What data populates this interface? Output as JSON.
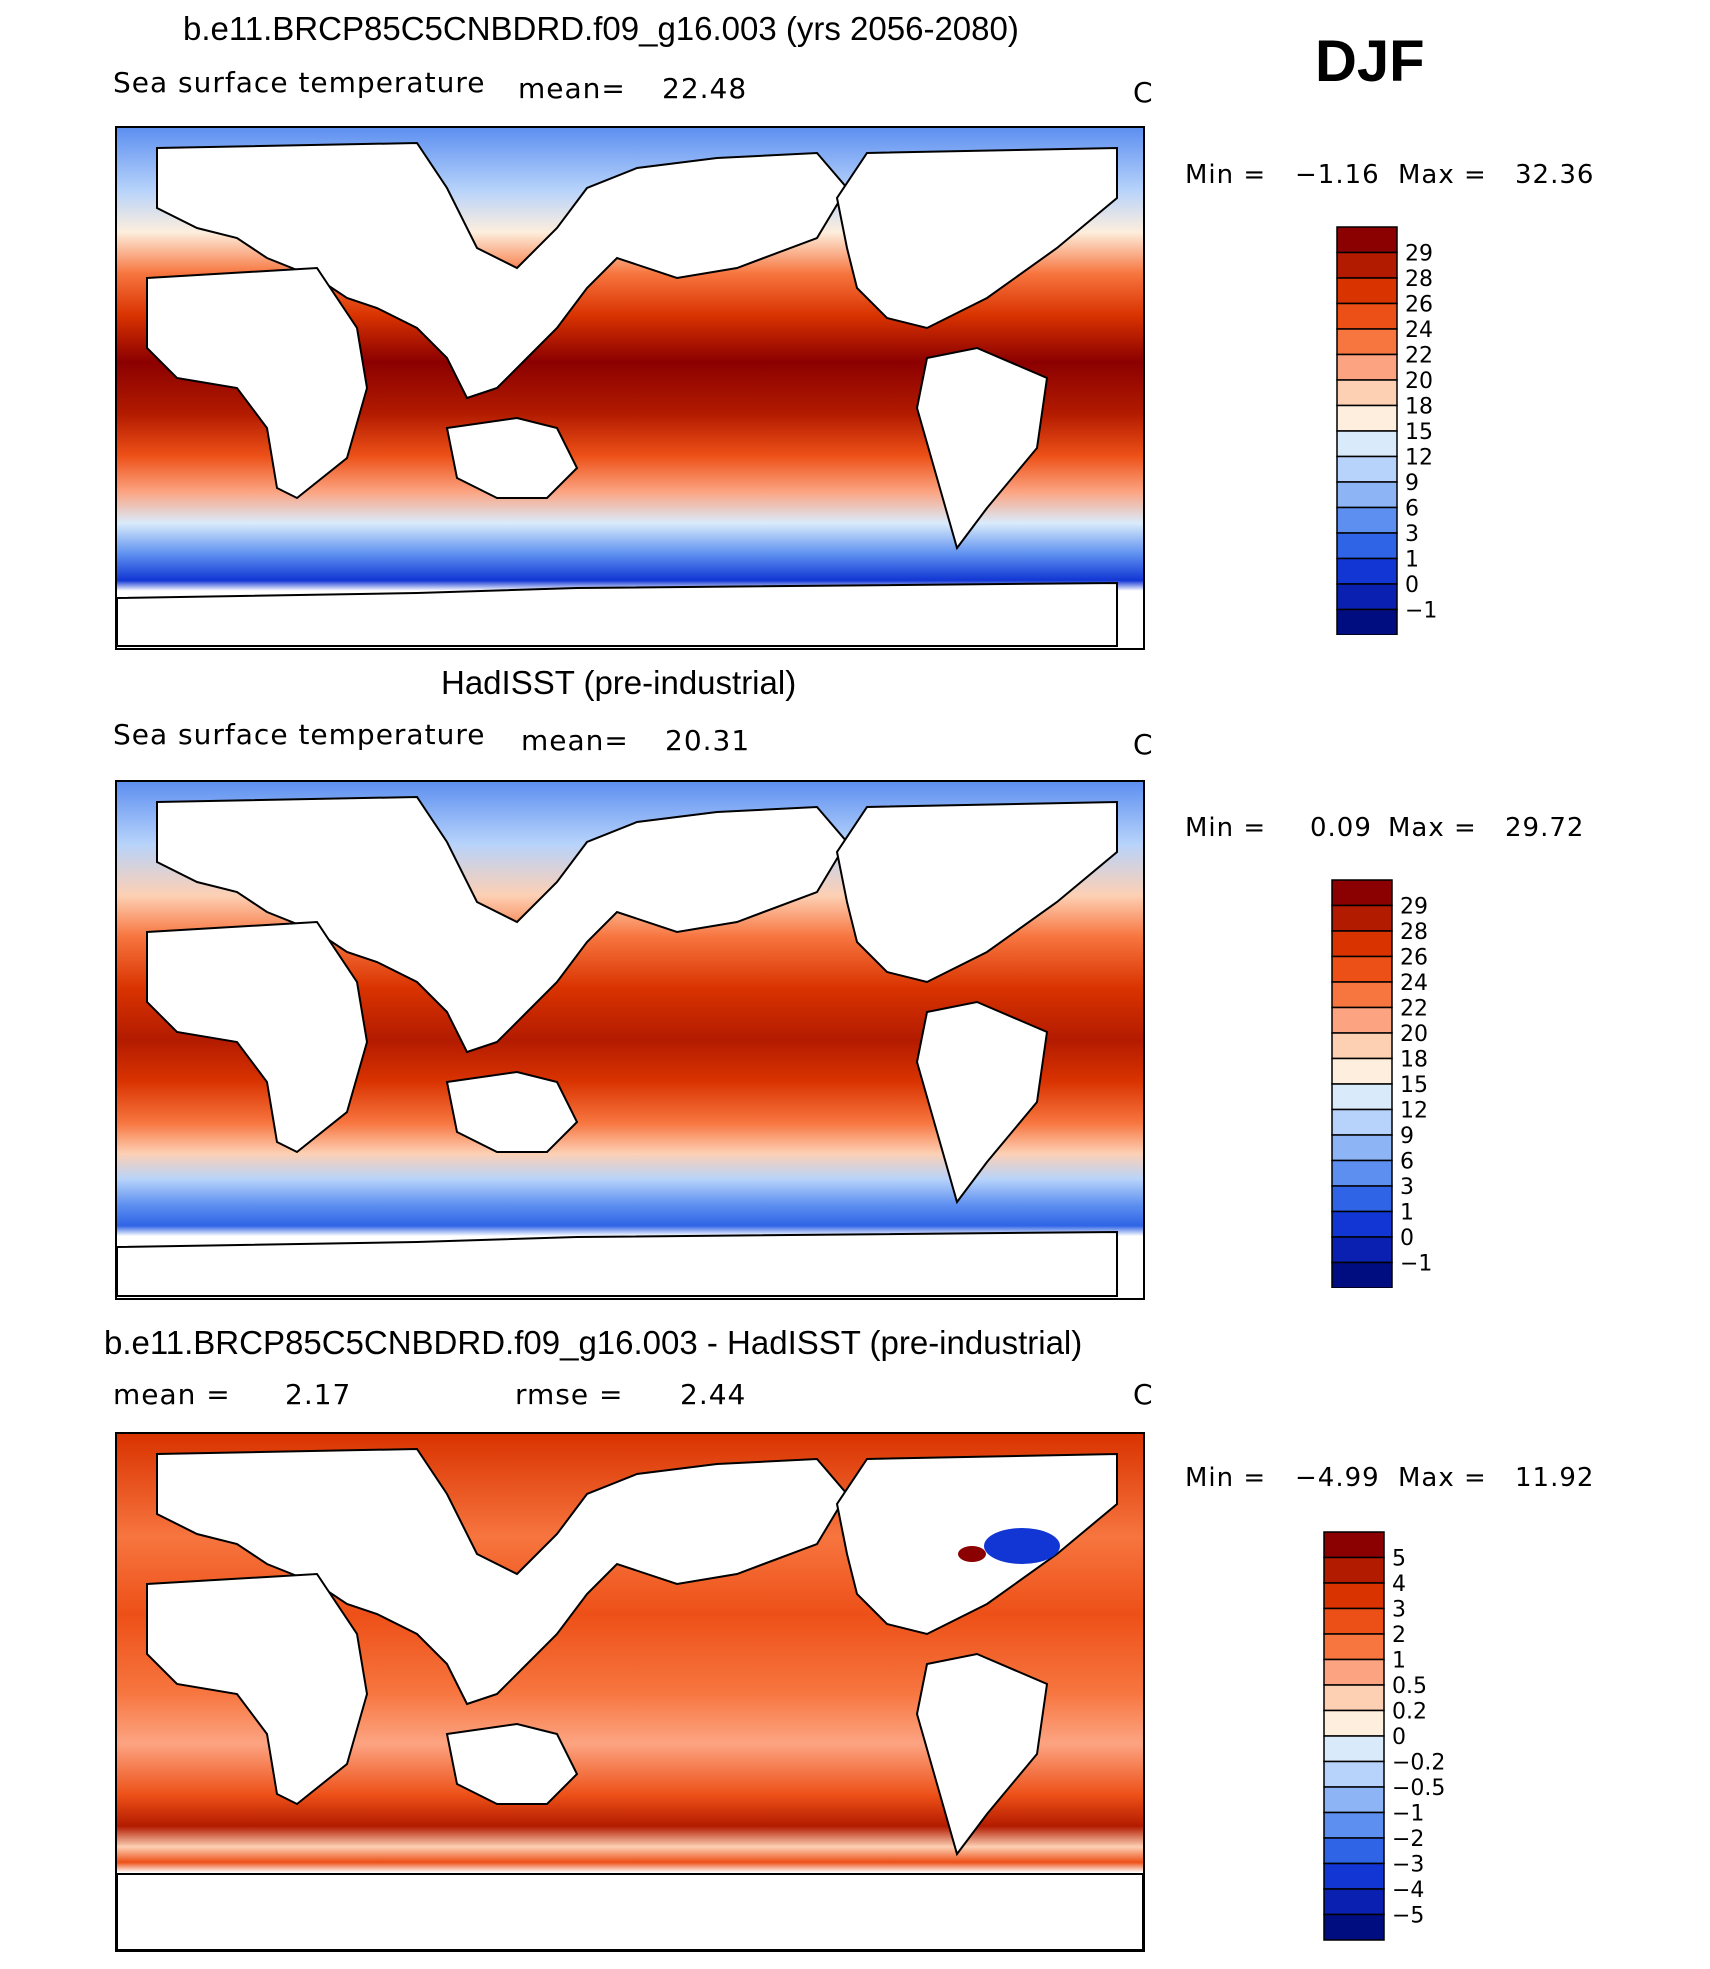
{
  "season": "DJF",
  "panels": [
    {
      "title": "b.e11.BRCP85C5CNBDRD.f09_g16.003 (yrs 2056-2080)",
      "left_label": "Sea surface temperature",
      "stat_label": "mean=",
      "stat_value": "22.48",
      "units": "C",
      "min_label": "Min  =",
      "min_value": "−1.16",
      "max_label": "Max  =",
      "max_value": "32.36"
    },
    {
      "title": "HadISST (pre-industrial)",
      "left_label": "Sea surface temperature",
      "stat_label": "mean=",
      "stat_value": "20.31",
      "units": "C",
      "min_label": "Min  =",
      "min_value": "0.09",
      "max_label": "Max  =",
      "max_value": "29.72"
    },
    {
      "title": "b.e11.BRCP85C5CNBDRD.f09_g16.003 - HadISST (pre-industrial)",
      "left_label": "mean  =",
      "left_value": "2.17",
      "stat_label": "rmse  =",
      "stat_value": "2.44",
      "units": "C",
      "min_label": "Min  =",
      "min_value": "−4.99",
      "max_label": "Max  =",
      "max_value": "11.92"
    }
  ],
  "chart_data": [
    {
      "type": "heatmap",
      "title": "b.e11.BRCP85C5CNBDRD.f09_g16.003 (yrs 2056-2080)",
      "variable": "Sea surface temperature",
      "units": "C",
      "mean": 22.48,
      "min": -1.16,
      "max": 32.36,
      "colorbar_levels": [
        "29",
        "28",
        "26",
        "24",
        "22",
        "20",
        "18",
        "15",
        "12",
        "9",
        "6",
        "3",
        "1",
        "0",
        "−1"
      ],
      "colorbar_colors": [
        "#8b0000",
        "#b31b00",
        "#d93300",
        "#ed5017",
        "#f7753f",
        "#fca482",
        "#fdd0b4",
        "#fdeedd",
        "#d9ebfb",
        "#b7d3fb",
        "#8db5f6",
        "#5d8ff0",
        "#2f64e6",
        "#1136d4",
        "#0a20b0",
        "#000d80"
      ]
    },
    {
      "type": "heatmap",
      "title": "HadISST (pre-industrial)",
      "variable": "Sea surface temperature",
      "units": "C",
      "mean": 20.31,
      "min": 0.09,
      "max": 29.72,
      "colorbar_levels": [
        "29",
        "28",
        "26",
        "24",
        "22",
        "20",
        "18",
        "15",
        "12",
        "9",
        "6",
        "3",
        "1",
        "0",
        "−1"
      ],
      "colorbar_colors": [
        "#8b0000",
        "#b31b00",
        "#d93300",
        "#ed5017",
        "#f7753f",
        "#fca482",
        "#fdd0b4",
        "#fdeedd",
        "#d9ebfb",
        "#b7d3fb",
        "#8db5f6",
        "#5d8ff0",
        "#2f64e6",
        "#1136d4",
        "#0a20b0",
        "#000d80"
      ]
    },
    {
      "type": "heatmap",
      "title": "b.e11.BRCP85C5CNBDRD.f09_g16.003 - HadISST (pre-industrial)",
      "units": "C",
      "mean": 2.17,
      "rmse": 2.44,
      "min": -4.99,
      "max": 11.92,
      "colorbar_levels": [
        "5",
        "4",
        "3",
        "2",
        "1",
        "0.5",
        "0.2",
        "0",
        "−0.2",
        "−0.5",
        "−1",
        "−2",
        "−3",
        "−4",
        "−5"
      ],
      "colorbar_colors": [
        "#8b0000",
        "#b31b00",
        "#d93300",
        "#ed5017",
        "#f7753f",
        "#fca482",
        "#fdd0b4",
        "#fdeedd",
        "#d9ebfb",
        "#b7d3fb",
        "#8db5f6",
        "#5d8ff0",
        "#2f64e6",
        "#1136d4",
        "#0a20b0",
        "#000d80"
      ]
    }
  ]
}
